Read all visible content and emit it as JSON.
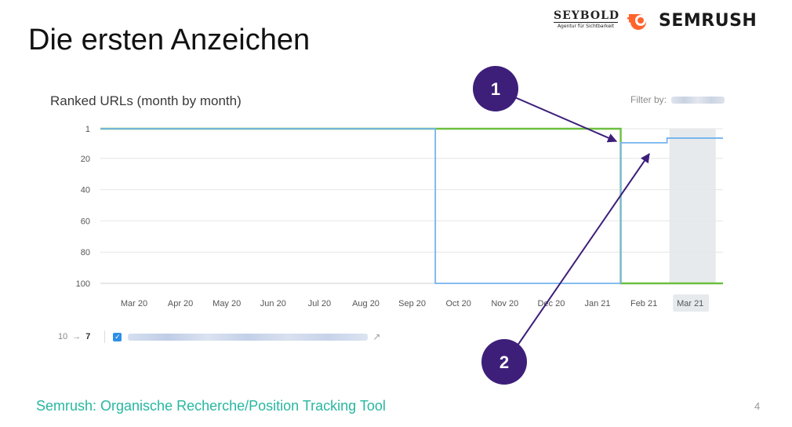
{
  "slide": {
    "title": "Die ersten Anzeichen",
    "caption": "Semrush: Organische Recherche/Position Tracking Tool",
    "page_number": "4"
  },
  "logos": {
    "seybold_name": "SEYBOLD",
    "seybold_tagline": "Agentur für Sichtbarkeit",
    "semrush_name": "SEMRUSH"
  },
  "chart": {
    "title": "Ranked URLs (month by month)",
    "filter_label": "Filter by:"
  },
  "keyword_row": {
    "from": "10",
    "arrow": "→",
    "to": "7"
  },
  "annotations": [
    "1",
    "2"
  ],
  "colors": {
    "green_line": "#6cbf3f",
    "blue_line": "#74b4ee",
    "badge": "#3d1f7a",
    "caption": "#27b7a0",
    "highlight": "#e7eaed"
  },
  "chart_data": {
    "type": "line",
    "categories": [
      "Mar 20",
      "Apr 20",
      "May 20",
      "Jun 20",
      "Jul 20",
      "Aug 20",
      "Sep 20",
      "Oct 20",
      "Nov 20",
      "Dec 20",
      "Jan 21",
      "Feb 21",
      "Mar 21"
    ],
    "y_ticks": [
      1,
      20,
      40,
      60,
      80,
      100
    ],
    "ylim": [
      1,
      100
    ],
    "y_inverted": true,
    "highlighted_category": "Mar 21",
    "series": [
      {
        "color": "#6cbf3f",
        "values": [
          1,
          1,
          1,
          1,
          1,
          1,
          1,
          1,
          1,
          1,
          1,
          100,
          100
        ]
      },
      {
        "color": "#74b4ee",
        "values": [
          1,
          1,
          1,
          1,
          1,
          1,
          1,
          100,
          100,
          100,
          100,
          10,
          7
        ]
      }
    ]
  }
}
